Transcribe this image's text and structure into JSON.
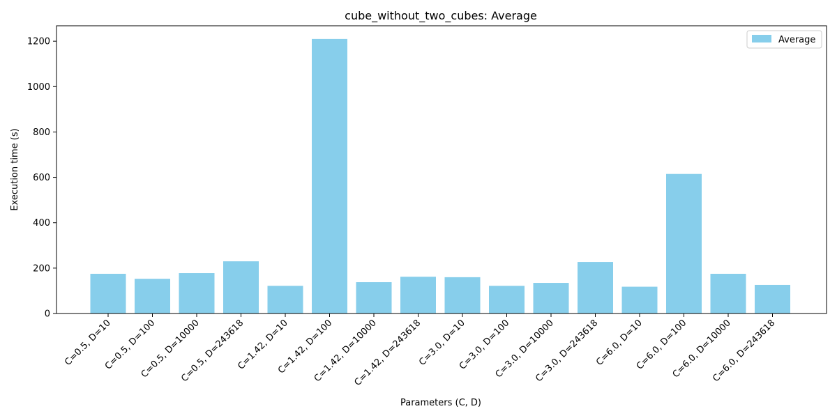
{
  "chart_data": {
    "type": "bar",
    "title": "cube_without_two_cubes: Average",
    "xlabel": "Parameters (C, D)",
    "ylabel": "Execution time (s)",
    "categories": [
      "C=0.5, D=10",
      "C=0.5, D=100",
      "C=0.5, D=10000",
      "C=0.5, D=243618",
      "C=1.42, D=10",
      "C=1.42, D=100",
      "C=1.42, D=10000",
      "C=1.42, D=243618",
      "C=3.0, D=10",
      "C=3.0, D=100",
      "C=3.0, D=10000",
      "C=3.0, D=243618",
      "C=6.0, D=10",
      "C=6.0, D=100",
      "C=6.0, D=10000",
      "C=6.0, D=243618"
    ],
    "series": [
      {
        "name": "Average",
        "color": "#87ceeb",
        "values": [
          175,
          153,
          178,
          230,
          122,
          1210,
          138,
          162,
          160,
          122,
          135,
          227,
          118,
          615,
          175,
          126
        ]
      }
    ],
    "ylim": [
      0,
      1268
    ],
    "yticks": [
      0,
      200,
      400,
      600,
      800,
      1000,
      1200
    ],
    "grid": false,
    "legend": "top-right"
  }
}
